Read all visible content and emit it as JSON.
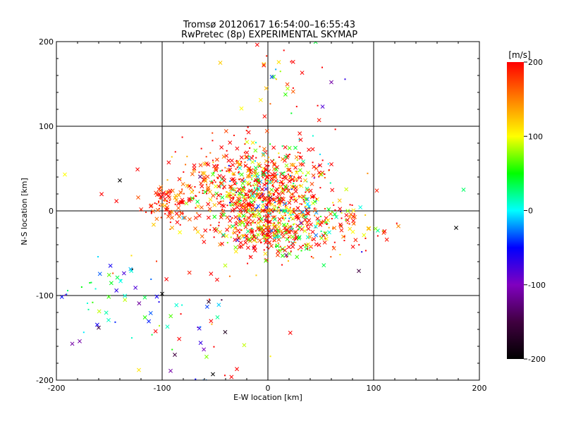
{
  "chart_data": {
    "type": "scatter",
    "title": "Tromsø 20120617 16:54:00–16:55:43",
    "subtitle": "RwPretec (8p) EXPERIMENTAL SKYMAP",
    "xlabel": "E-W location [km]",
    "ylabel": "N-S location [km]",
    "xlim": [
      -200,
      200
    ],
    "ylim": [
      -200,
      200
    ],
    "xticks": [
      "-200",
      "-100",
      "0",
      "100",
      "200"
    ],
    "yticks": [
      "-200",
      "-100",
      "0",
      "100",
      "200"
    ],
    "grid": true,
    "colorbar": {
      "label": "[m/s]",
      "range": [
        -200,
        200
      ],
      "ticks": [
        "200",
        "100",
        "0",
        "-100",
        "-200"
      ],
      "colormap": [
        "#000000",
        "#400040",
        "#8000c0",
        "#0000ff",
        "#00ffff",
        "#00ff00",
        "#ffff00",
        "#ff8000",
        "#ff0000"
      ]
    },
    "markers": [
      "x",
      "dot"
    ],
    "clusters": [
      {
        "x": 0,
        "y": 20,
        "sx": 28,
        "sy": 28,
        "n": 700,
        "vel_mean": 170,
        "vel_sd": 120
      },
      {
        "x": 5,
        "y": -25,
        "sx": 22,
        "sy": 15,
        "n": 250,
        "vel_mean": 160,
        "vel_sd": 100
      },
      {
        "x": -95,
        "y": 8,
        "sx": 10,
        "sy": 10,
        "n": 70,
        "vel_mean": 190,
        "vel_sd": 40
      },
      {
        "x": 70,
        "y": -20,
        "sx": 20,
        "sy": 15,
        "n": 90,
        "vel_mean": 170,
        "vel_sd": 100
      },
      {
        "x": -40,
        "y": 30,
        "sx": 35,
        "sy": 25,
        "n": 200,
        "vel_mean": 180,
        "vel_sd": 60
      },
      {
        "x": -160,
        "y": -95,
        "sx": 22,
        "sy": 20,
        "n": 40,
        "vel_mean": 0,
        "vel_sd": 60
      },
      {
        "x": -70,
        "y": -120,
        "sx": 35,
        "sy": 45,
        "n": 50,
        "vel_mean": 120,
        "vel_sd": 150
      },
      {
        "x": 20,
        "y": 150,
        "sx": 25,
        "sy": 40,
        "n": 40,
        "vel_mean": 150,
        "vel_sd": 120
      }
    ],
    "highlight_points": [
      {
        "x": -45,
        "y": 175,
        "v": 120
      },
      {
        "x": -25,
        "y": 121,
        "v": 100
      },
      {
        "x": 60,
        "y": 152,
        "v": -110
      },
      {
        "x": 185,
        "y": 25,
        "v": 30
      },
      {
        "x": 178,
        "y": -20,
        "v": -200
      },
      {
        "x": -192,
        "y": 43,
        "v": 100
      },
      {
        "x": -140,
        "y": 36,
        "v": -200
      },
      {
        "x": 103,
        "y": 24,
        "v": 190
      },
      {
        "x": -185,
        "y": -157,
        "v": -110
      },
      {
        "x": -178,
        "y": -154,
        "v": -110
      },
      {
        "x": -122,
        "y": -188,
        "v": 110
      },
      {
        "x": -92,
        "y": -189,
        "v": -110
      },
      {
        "x": -52,
        "y": -193,
        "v": -200
      },
      {
        "x": -88,
        "y": -170,
        "v": -150
      },
      {
        "x": -100,
        "y": -98,
        "v": -200
      },
      {
        "x": -160,
        "y": -138,
        "v": -150
      },
      {
        "x": 86,
        "y": -71,
        "v": -150
      }
    ]
  }
}
